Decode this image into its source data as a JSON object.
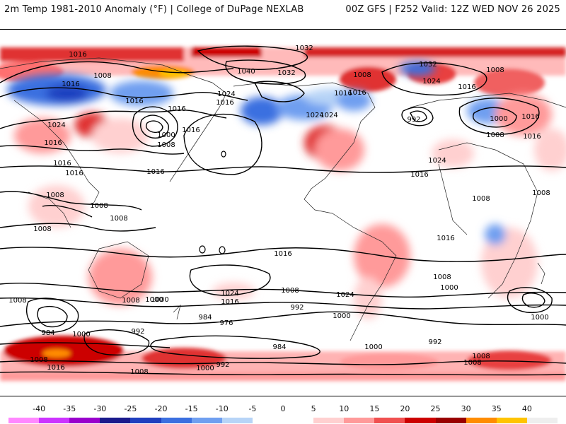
{
  "header": {
    "title_left": "2m Temp 1981-2010 Anomaly (°F) | College of DuPage NEXLAB",
    "title_right": "00Z GFS | F252 Valid: 12Z WED NOV 26 2025"
  },
  "map": {
    "isobar_labels": [
      "1016",
      "1008",
      "1016",
      "1016",
      "1024",
      "1016",
      "1016",
      "1000",
      "1008",
      "1016",
      "1016",
      "1024",
      "1016",
      "1040",
      "1032",
      "1032",
      "1024",
      "1016",
      "1016",
      "1024",
      "1008",
      "1032",
      "1024",
      "1016",
      "992",
      "1008",
      "1016",
      "1000",
      "1008",
      "1016",
      "1024",
      "1016",
      "1008",
      "1008",
      "1008",
      "1008",
      "1008",
      "1008",
      "1016",
      "1016",
      "1016",
      "1008",
      "1008",
      "1000",
      "1024",
      "1016",
      "1008",
      "992",
      "1000",
      "984",
      "976",
      "1000",
      "984",
      "992",
      "1000",
      "1016",
      "1008",
      "1000",
      "992",
      "984",
      "1000",
      "1008",
      "1016",
      "1024",
      "1008",
      "992",
      "1008",
      "1000",
      "1000",
      "1008"
    ]
  },
  "colorbar": {
    "ticks": [
      "-40",
      "-35",
      "-30",
      "-25",
      "-20",
      "-15",
      "-10",
      "-5",
      "0",
      "5",
      "10",
      "15",
      "20",
      "25",
      "30",
      "35",
      "40"
    ],
    "colors": [
      "#ff88ff",
      "#cc33ff",
      "#9900cc",
      "#1a1a8c",
      "#1f3fbf",
      "#3b6fe0",
      "#6f9ff0",
      "#b7d4f7",
      "#ffffff",
      "#ffffff",
      "#ffd0d0",
      "#ff9a9a",
      "#f05050",
      "#cc0000",
      "#990000",
      "#ff8c00",
      "#ffc400",
      "#eeeeee"
    ]
  }
}
